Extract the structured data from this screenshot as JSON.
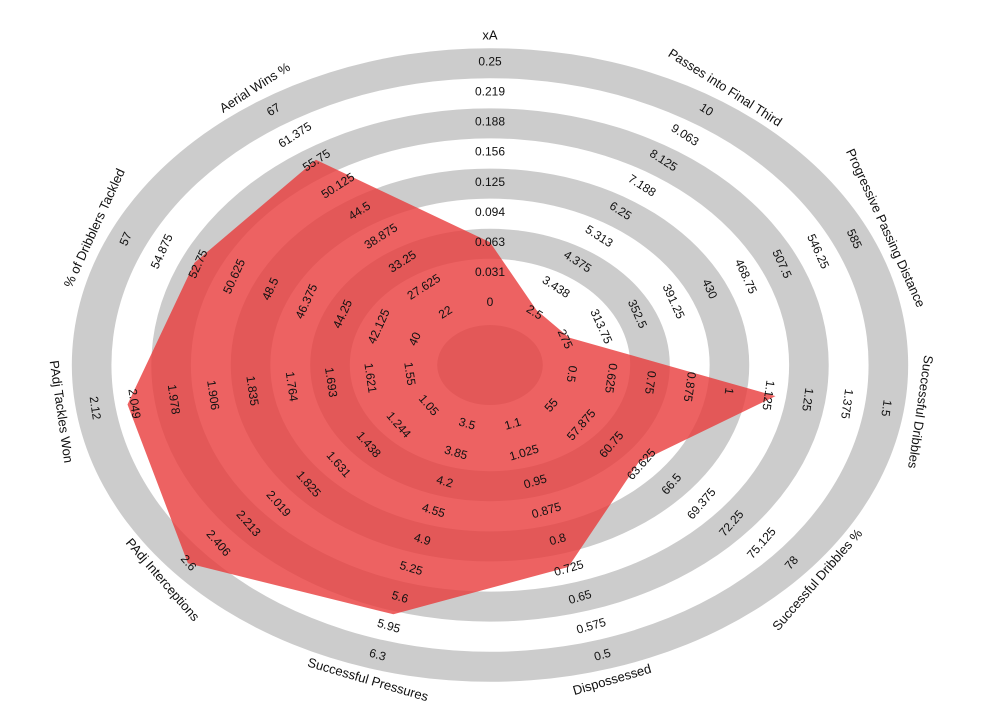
{
  "chart_data": {
    "type": "radar",
    "categories": [
      "xA",
      "Passes into Final Third",
      "Progressive Passing Distance",
      "Successful Dribbles",
      "Successful Dribbles %",
      "Dispossessed",
      "Successful Pressures",
      "PAdj Interceptions",
      "PAdj Tackles Won",
      "% of Dribblers Tackled",
      "Aerial Wins %"
    ],
    "ticks": [
      [
        0,
        0.031,
        0.063,
        0.094,
        0.125,
        0.156,
        0.188,
        0.219,
        0.25
      ],
      [
        2.5,
        3.438,
        4.375,
        5.313,
        6.25,
        7.188,
        8.125,
        9.063,
        10
      ],
      [
        275,
        313.75,
        352.5,
        391.25,
        430,
        468.75,
        507.5,
        546.25,
        585
      ],
      [
        0.5,
        0.625,
        0.75,
        0.875,
        1,
        1.125,
        1.25,
        1.375,
        1.5
      ],
      [
        55,
        57.875,
        60.75,
        63.625,
        66.5,
        69.375,
        72.25,
        75.125,
        78
      ],
      [
        1.1,
        1.025,
        0.95,
        0.875,
        0.8,
        0.725,
        0.65,
        0.575,
        0.5
      ],
      [
        3.5,
        3.85,
        4.2,
        4.55,
        4.9,
        5.25,
        5.6,
        5.95,
        6.3
      ],
      [
        1.05,
        1.244,
        1.438,
        1.631,
        1.825,
        2.019,
        2.213,
        2.406,
        2.6
      ],
      [
        1.55,
        1.621,
        1.693,
        1.764,
        1.835,
        1.906,
        1.978,
        2.049,
        2.12
      ],
      [
        40,
        42.125,
        44.25,
        46.375,
        48.5,
        50.625,
        52.75,
        54.875,
        57
      ],
      [
        22,
        27.625,
        33.25,
        38.875,
        44.5,
        50.125,
        55.75,
        61.375,
        67
      ]
    ],
    "series": [
      {
        "color": "#e83b3b",
        "values": [
          0.063,
          2.6,
          280,
          1.15,
          63.3,
          0.73,
          5.8,
          2.6,
          2.06,
          53,
          56
        ]
      }
    ]
  }
}
